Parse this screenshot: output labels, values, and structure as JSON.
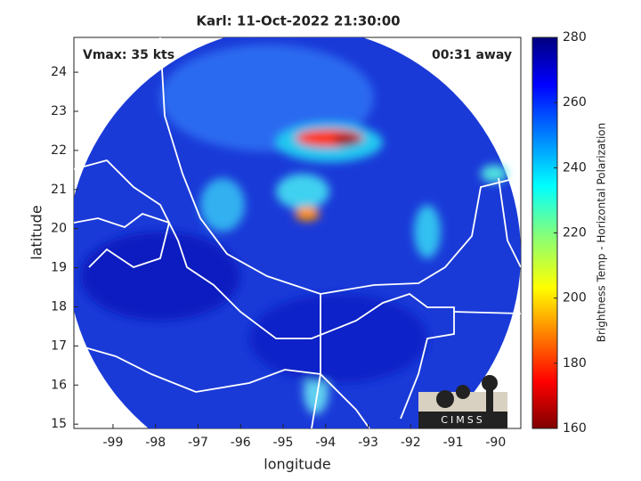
{
  "chart_data": {
    "type": "map",
    "title": "Karl: 11-Oct-2022 21:30:00",
    "annotations": [
      "Vmax: 35 kts",
      "00:31 away"
    ],
    "xlabel": "longitude",
    "ylabel": "latitude",
    "xlim": [
      -99.92,
      -89.41
    ],
    "ylim": [
      14.89,
      24.89
    ],
    "xticks": [
      -99,
      -98,
      -97,
      -96,
      -95,
      -94,
      -93,
      -92,
      -91,
      -90
    ],
    "yticks": [
      15,
      16,
      17,
      18,
      19,
      20,
      21,
      22,
      23,
      24
    ],
    "colorbar": {
      "label": "Brightness Temp - Horizontal Polarization",
      "clim": [
        160,
        280
      ],
      "ticks": [
        160,
        180,
        200,
        220,
        240,
        260,
        280
      ]
    },
    "logo": "CIMSS"
  }
}
